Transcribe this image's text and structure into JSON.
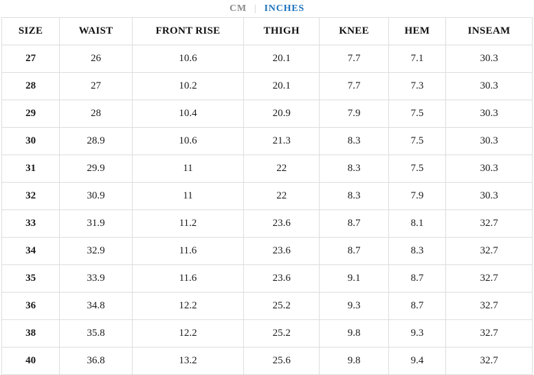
{
  "unit_toggle": {
    "cm_label": "CM",
    "separator": "|",
    "inches_label": "INCHES",
    "active_unit": "INCHES",
    "active_color": "#1e73be",
    "inactive_color": "#8a8a8a"
  },
  "table": {
    "border_color": "#dddddd",
    "headers": [
      "SIZE",
      "WAIST",
      "FRONT RISE",
      "THIGH",
      "KNEE",
      "HEM",
      "INSEAM"
    ],
    "rows": [
      [
        "27",
        "26",
        "10.6",
        "20.1",
        "7.7",
        "7.1",
        "30.3"
      ],
      [
        "28",
        "27",
        "10.2",
        "20.1",
        "7.7",
        "7.3",
        "30.3"
      ],
      [
        "29",
        "28",
        "10.4",
        "20.9",
        "7.9",
        "7.5",
        "30.3"
      ],
      [
        "30",
        "28.9",
        "10.6",
        "21.3",
        "8.3",
        "7.5",
        "30.3"
      ],
      [
        "31",
        "29.9",
        "11",
        "22",
        "8.3",
        "7.5",
        "30.3"
      ],
      [
        "32",
        "30.9",
        "11",
        "22",
        "8.3",
        "7.9",
        "30.3"
      ],
      [
        "33",
        "31.9",
        "11.2",
        "23.6",
        "8.7",
        "8.1",
        "32.7"
      ],
      [
        "34",
        "32.9",
        "11.6",
        "23.6",
        "8.7",
        "8.3",
        "32.7"
      ],
      [
        "35",
        "33.9",
        "11.6",
        "23.6",
        "9.1",
        "8.7",
        "32.7"
      ],
      [
        "36",
        "34.8",
        "12.2",
        "25.2",
        "9.3",
        "8.7",
        "32.7"
      ],
      [
        "38",
        "35.8",
        "12.2",
        "25.2",
        "9.8",
        "9.3",
        "32.7"
      ],
      [
        "40",
        "36.8",
        "13.2",
        "25.6",
        "9.8",
        "9.4",
        "32.7"
      ]
    ]
  }
}
